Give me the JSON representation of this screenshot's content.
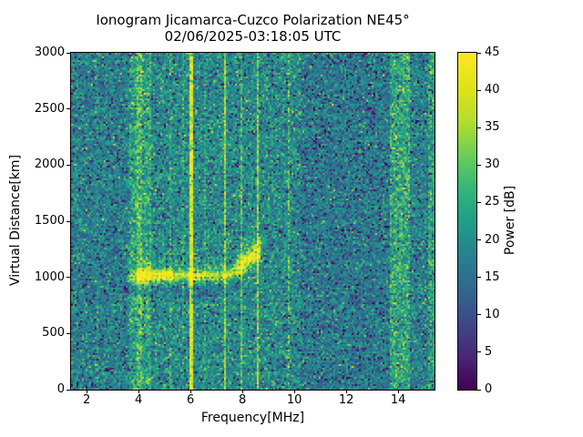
{
  "figure": {
    "background": "#ffffff"
  },
  "chart_data": {
    "type": "heatmap",
    "title": "Ionogram Jicamarca-Cuzco Polarization NE45°",
    "subtitle": "02/06/2025-03:18:05 UTC",
    "xlabel": "Frequency[MHz]",
    "ylabel": "Virtual Distance[km]",
    "xlim": [
      1.4,
      15.4
    ],
    "ylim": [
      0,
      3000
    ],
    "xticks": [
      2,
      4,
      6,
      8,
      10,
      12,
      14
    ],
    "yticks": [
      0,
      500,
      1000,
      1500,
      2000,
      2500,
      3000
    ],
    "grid": false,
    "colorbar": {
      "label": "Power [dB]",
      "min": 0,
      "max": 45,
      "ticks": [
        0,
        5,
        10,
        15,
        20,
        25,
        30,
        35,
        40,
        45
      ],
      "colormap": "viridis",
      "colormap_anchors": [
        "#440154",
        "#482878",
        "#3e4989",
        "#31688e",
        "#26828e",
        "#1f9e89",
        "#35b779",
        "#6ece58",
        "#b5de2b",
        "#dfe318",
        "#fde725"
      ]
    },
    "render_seed": 20250206,
    "noise": {
      "mean_db": 19.5,
      "std_db": 5.0,
      "dropout_prob": 0.07,
      "dropout_db": 13
    },
    "background_regions": [
      {
        "from": 1.4,
        "to": 3.6,
        "delta_db": -2.0
      },
      {
        "from": 10.25,
        "to": 13.65,
        "delta_db": -3.0
      },
      {
        "from": 14.45,
        "to": 15.1,
        "delta_db": -1.5
      }
    ],
    "rfi_bands": [
      {
        "center_mhz": 2.42,
        "width_mhz": 0.06,
        "boost_db": 3,
        "diffuse": false,
        "intermittent": false
      },
      {
        "center_mhz": 4.05,
        "width_mhz": 0.85,
        "boost_db": 5,
        "diffuse": true,
        "intermittent": false
      },
      {
        "center_mhz": 4.02,
        "width_mhz": 0.18,
        "boost_db": 6,
        "diffuse": true,
        "intermittent": false
      },
      {
        "center_mhz": 5.2,
        "width_mhz": 0.07,
        "boost_db": 5,
        "diffuse": false,
        "intermittent": false
      },
      {
        "center_mhz": 5.72,
        "width_mhz": 0.06,
        "boost_db": 4,
        "diffuse": false,
        "intermittent": false
      },
      {
        "center_mhz": 6.0,
        "width_mhz": 0.11,
        "boost_db": 22,
        "diffuse": false,
        "intermittent": false
      },
      {
        "center_mhz": 6.52,
        "width_mhz": 0.06,
        "boost_db": 4,
        "diffuse": false,
        "intermittent": false
      },
      {
        "center_mhz": 7.32,
        "width_mhz": 0.08,
        "boost_db": 15,
        "diffuse": false,
        "intermittent": false
      },
      {
        "center_mhz": 7.93,
        "width_mhz": 0.07,
        "boost_db": 9,
        "diffuse": false,
        "intermittent": false
      },
      {
        "center_mhz": 8.55,
        "width_mhz": 0.09,
        "boost_db": 14,
        "diffuse": false,
        "intermittent": false
      },
      {
        "center_mhz": 9.74,
        "width_mhz": 0.07,
        "boost_db": 10,
        "diffuse": false,
        "intermittent": true
      },
      {
        "center_mhz": 14.05,
        "width_mhz": 0.75,
        "boost_db": 6,
        "diffuse": true,
        "intermittent": false
      },
      {
        "center_mhz": 15.28,
        "width_mhz": 0.3,
        "boost_db": 4,
        "diffuse": true,
        "intermittent": false
      }
    ],
    "echo_trace": {
      "f_start_mhz": 3.45,
      "f_end_mhz": 8.75,
      "base_altitude_km": 1005,
      "cusp_start_mhz": 7.4,
      "cusp_slope_km_per_mhz": 170,
      "core_sigma_km": 45,
      "cusp_sigma_km": 95,
      "segments": [
        {
          "from": 3.45,
          "to": 3.9,
          "amp_db": 14
        },
        {
          "from": 3.9,
          "to": 5.35,
          "amp_db": 24
        },
        {
          "from": 5.35,
          "to": 5.9,
          "amp_db": 14
        },
        {
          "from": 5.9,
          "to": 6.4,
          "amp_db": 20
        },
        {
          "from": 6.4,
          "to": 7.8,
          "amp_db": 15
        },
        {
          "from": 7.8,
          "to": 8.65,
          "amp_db": 21
        },
        {
          "from": 8.65,
          "to": 8.75,
          "amp_db": 12
        }
      ],
      "spread_above_km": 260,
      "spread_db": 6,
      "shadow_below_db": -5,
      "shadow_depth_km": 170
    }
  }
}
